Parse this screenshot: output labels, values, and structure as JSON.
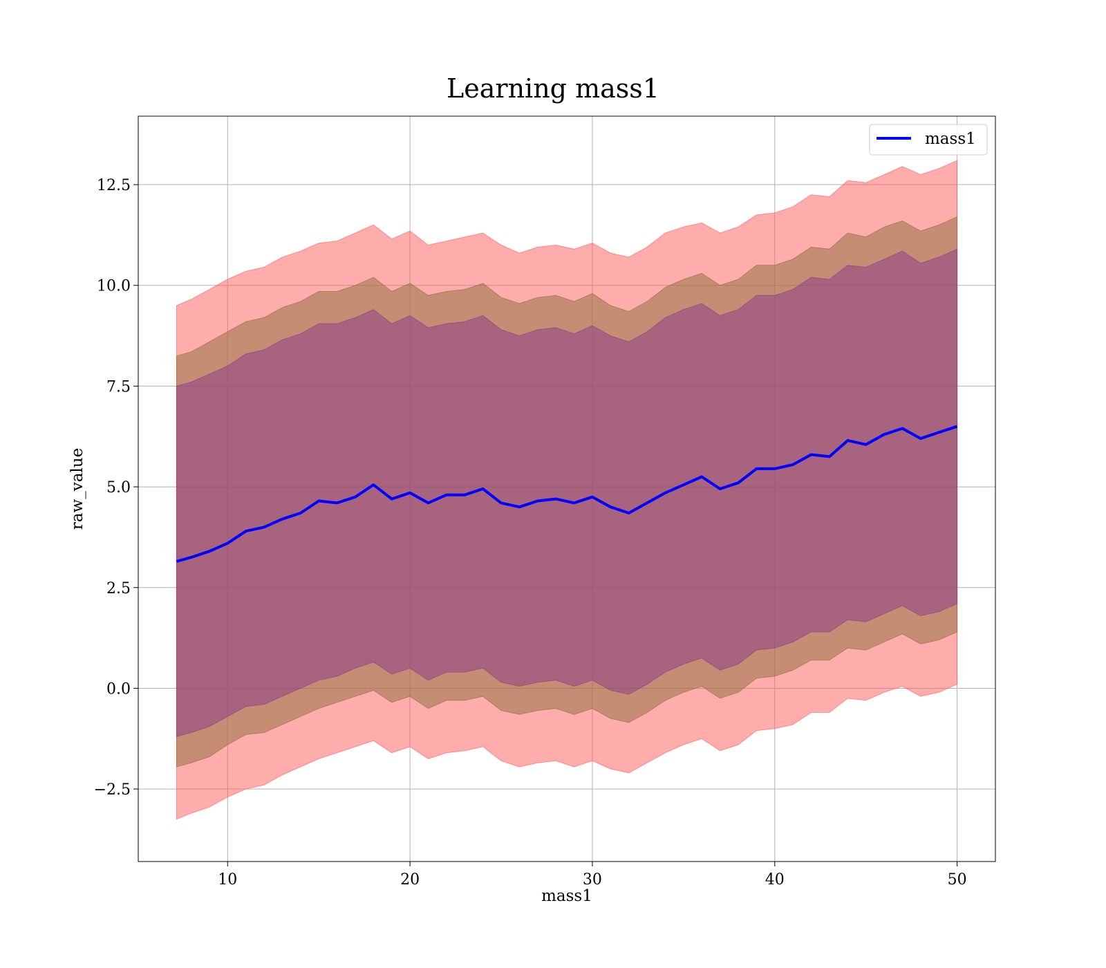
{
  "chart_data": {
    "type": "line",
    "title": "Learning mass1",
    "xlabel": "mass1",
    "ylabel": "raw_value",
    "xlim": [
      5.1,
      52.1
    ],
    "ylim": [
      -4.3,
      14.2
    ],
    "grid": true,
    "legend_position": "top-right",
    "x_ticks": [
      10,
      20,
      30,
      40,
      50
    ],
    "x_tick_labels": [
      "10",
      "20",
      "30",
      "40",
      "50"
    ],
    "y_ticks": [
      -2.5,
      0.0,
      2.5,
      5.0,
      7.5,
      10.0,
      12.5
    ],
    "y_tick_labels": [
      "−2.5",
      "0.0",
      "2.5",
      "5.0",
      "7.5",
      "10.0",
      "12.5"
    ],
    "series": [
      {
        "name": "mass1",
        "color": "#0000ff",
        "x": [
          7.2,
          8.0,
          9.0,
          10.0,
          11.0,
          12.0,
          13.0,
          14.0,
          15.0,
          16.0,
          17.0,
          18.0,
          19.0,
          20.0,
          21.0,
          22.0,
          23.0,
          24.0,
          25.0,
          26.0,
          27.0,
          28.0,
          29.0,
          30.0,
          31.0,
          32.0,
          33.0,
          34.0,
          35.0,
          36.0,
          37.0,
          38.0,
          39.0,
          40.0,
          41.0,
          42.0,
          43.0,
          44.0,
          45.0,
          46.0,
          47.0,
          48.0,
          49.0,
          50.0
        ],
        "y": [
          3.15,
          3.25,
          3.4,
          3.6,
          3.9,
          4.0,
          4.2,
          4.35,
          4.65,
          4.6,
          4.75,
          5.05,
          4.7,
          4.85,
          4.6,
          4.8,
          4.8,
          4.95,
          4.6,
          4.5,
          4.65,
          4.7,
          4.6,
          4.75,
          4.5,
          4.35,
          4.6,
          4.85,
          5.05,
          5.25,
          4.95,
          5.1,
          5.45,
          5.45,
          5.55,
          5.8,
          5.75,
          6.15,
          6.05,
          6.3,
          6.45,
          6.2,
          6.35,
          6.5
        ]
      }
    ],
    "bands": [
      {
        "color": "#ff5a5a",
        "opacity": 0.5,
        "x": [
          7.2,
          8.0,
          9.0,
          10.0,
          11.0,
          12.0,
          13.0,
          14.0,
          15.0,
          16.0,
          17.0,
          18.0,
          19.0,
          20.0,
          21.0,
          22.0,
          23.0,
          24.0,
          25.0,
          26.0,
          27.0,
          28.0,
          29.0,
          30.0,
          31.0,
          32.0,
          33.0,
          34.0,
          35.0,
          36.0,
          37.0,
          38.0,
          39.0,
          40.0,
          41.0,
          42.0,
          43.0,
          44.0,
          45.0,
          46.0,
          47.0,
          48.0,
          49.0,
          50.0
        ],
        "upper": [
          9.5,
          9.65,
          9.9,
          10.15,
          10.35,
          10.45,
          10.7,
          10.85,
          11.05,
          11.1,
          11.3,
          11.5,
          11.15,
          11.35,
          11.0,
          11.1,
          11.2,
          11.3,
          11.0,
          10.8,
          10.95,
          11.0,
          10.9,
          11.05,
          10.8,
          10.7,
          10.95,
          11.3,
          11.45,
          11.55,
          11.3,
          11.45,
          11.75,
          11.8,
          11.95,
          12.25,
          12.2,
          12.6,
          12.55,
          12.75,
          12.95,
          12.75,
          12.9,
          13.1
        ],
        "lower": [
          -3.25,
          -3.1,
          -2.95,
          -2.7,
          -2.5,
          -2.4,
          -2.15,
          -1.95,
          -1.75,
          -1.6,
          -1.45,
          -1.3,
          -1.6,
          -1.45,
          -1.75,
          -1.6,
          -1.55,
          -1.45,
          -1.8,
          -1.95,
          -1.85,
          -1.8,
          -1.95,
          -1.8,
          -2.0,
          -2.1,
          -1.85,
          -1.6,
          -1.4,
          -1.25,
          -1.55,
          -1.4,
          -1.05,
          -1.0,
          -0.9,
          -0.6,
          -0.6,
          -0.25,
          -0.3,
          -0.1,
          0.05,
          -0.2,
          -0.1,
          0.1
        ]
      },
      {
        "color": "#8b6e3a",
        "opacity": 0.5,
        "x": [
          7.2,
          8.0,
          9.0,
          10.0,
          11.0,
          12.0,
          13.0,
          14.0,
          15.0,
          16.0,
          17.0,
          18.0,
          19.0,
          20.0,
          21.0,
          22.0,
          23.0,
          24.0,
          25.0,
          26.0,
          27.0,
          28.0,
          29.0,
          30.0,
          31.0,
          32.0,
          33.0,
          34.0,
          35.0,
          36.0,
          37.0,
          38.0,
          39.0,
          40.0,
          41.0,
          42.0,
          43.0,
          44.0,
          45.0,
          46.0,
          47.0,
          48.0,
          49.0,
          50.0
        ],
        "upper": [
          8.25,
          8.35,
          8.6,
          8.85,
          9.1,
          9.2,
          9.45,
          9.6,
          9.85,
          9.85,
          10.0,
          10.2,
          9.85,
          10.05,
          9.75,
          9.85,
          9.9,
          10.05,
          9.7,
          9.55,
          9.7,
          9.75,
          9.6,
          9.8,
          9.5,
          9.35,
          9.6,
          9.95,
          10.15,
          10.3,
          10.0,
          10.15,
          10.5,
          10.5,
          10.65,
          10.95,
          10.9,
          11.3,
          11.2,
          11.45,
          11.6,
          11.35,
          11.5,
          11.7
        ],
        "lower": [
          -1.95,
          -1.85,
          -1.7,
          -1.4,
          -1.15,
          -1.1,
          -0.9,
          -0.7,
          -0.5,
          -0.35,
          -0.2,
          -0.05,
          -0.35,
          -0.2,
          -0.5,
          -0.3,
          -0.3,
          -0.2,
          -0.55,
          -0.65,
          -0.55,
          -0.5,
          -0.65,
          -0.5,
          -0.75,
          -0.85,
          -0.6,
          -0.3,
          -0.1,
          0.05,
          -0.25,
          -0.1,
          0.25,
          0.3,
          0.45,
          0.7,
          0.7,
          1.0,
          0.95,
          1.15,
          1.35,
          1.1,
          1.2,
          1.4
        ]
      },
      {
        "color": "#8b3a8b",
        "opacity": 0.5,
        "x": [
          7.2,
          8.0,
          9.0,
          10.0,
          11.0,
          12.0,
          13.0,
          14.0,
          15.0,
          16.0,
          17.0,
          18.0,
          19.0,
          20.0,
          21.0,
          22.0,
          23.0,
          24.0,
          25.0,
          26.0,
          27.0,
          28.0,
          29.0,
          30.0,
          31.0,
          32.0,
          33.0,
          34.0,
          35.0,
          36.0,
          37.0,
          38.0,
          39.0,
          40.0,
          41.0,
          42.0,
          43.0,
          44.0,
          45.0,
          46.0,
          47.0,
          48.0,
          49.0,
          50.0
        ],
        "upper": [
          7.5,
          7.6,
          7.8,
          8.0,
          8.3,
          8.4,
          8.65,
          8.8,
          9.05,
          9.05,
          9.2,
          9.4,
          9.05,
          9.25,
          8.95,
          9.05,
          9.1,
          9.25,
          8.9,
          8.75,
          8.9,
          8.95,
          8.8,
          9.0,
          8.75,
          8.6,
          8.85,
          9.2,
          9.4,
          9.55,
          9.25,
          9.4,
          9.75,
          9.75,
          9.9,
          10.2,
          10.15,
          10.5,
          10.45,
          10.65,
          10.85,
          10.55,
          10.7,
          10.9
        ],
        "lower": [
          -1.2,
          -1.1,
          -0.95,
          -0.7,
          -0.45,
          -0.4,
          -0.2,
          0.0,
          0.2,
          0.3,
          0.5,
          0.65,
          0.35,
          0.5,
          0.2,
          0.4,
          0.4,
          0.5,
          0.15,
          0.05,
          0.15,
          0.2,
          0.05,
          0.2,
          -0.05,
          -0.15,
          0.1,
          0.4,
          0.6,
          0.75,
          0.45,
          0.6,
          0.95,
          1.0,
          1.15,
          1.4,
          1.4,
          1.7,
          1.65,
          1.85,
          2.05,
          1.8,
          1.9,
          2.1
        ]
      }
    ]
  }
}
